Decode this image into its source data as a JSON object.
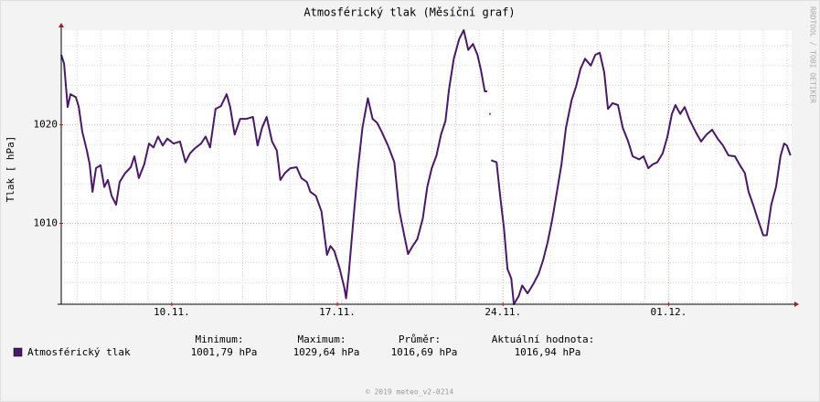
{
  "chart_data": {
    "type": "line",
    "title": "Atmosférický tlak (Měsíční graf)",
    "y_label": "Tlak [ hPa]",
    "side_text": "RRDTOOL / TOBI OETIKER",
    "footer": "© 2019 meteo_v2-0214",
    "xlim": [
      5.33,
      36.2
    ],
    "xticks": [
      {
        "value": 10,
        "label": "10.11."
      },
      {
        "value": 17,
        "label": "17.11."
      },
      {
        "value": 24,
        "label": "24.11."
      },
      {
        "value": 31,
        "label": "01.12."
      }
    ],
    "xminor": [
      6,
      7,
      8,
      9,
      11,
      12,
      13,
      14,
      15,
      16,
      18,
      19,
      20,
      21,
      22,
      23,
      25,
      26,
      27,
      28,
      29,
      30,
      32,
      33,
      34,
      35,
      36
    ],
    "ylim": [
      1001.8,
      1029.6
    ],
    "yticks": [
      1010,
      1020
    ],
    "yminor": [
      1002,
      1004,
      1006,
      1008,
      1012,
      1014,
      1016,
      1018,
      1022,
      1024,
      1026,
      1028
    ],
    "grid": true,
    "series": [
      {
        "name": "Atmosférický tlak",
        "color": "#4a1868",
        "x": [
          5.33,
          5.45,
          5.6,
          5.72,
          5.95,
          6.07,
          6.22,
          6.41,
          6.53,
          6.65,
          6.8,
          6.99,
          7.15,
          7.3,
          7.46,
          7.65,
          7.8,
          8.03,
          8.27,
          8.42,
          8.61,
          8.84,
          9.04,
          9.23,
          9.42,
          9.62,
          9.81,
          10.08,
          10.35,
          10.58,
          10.77,
          10.97,
          11.24,
          11.43,
          11.62,
          11.85,
          12.08,
          12.32,
          12.47,
          12.66,
          12.89,
          13.16,
          13.43,
          13.63,
          13.82,
          14.01,
          14.24,
          14.44,
          14.59,
          14.78,
          15.01,
          15.28,
          15.48,
          15.71,
          15.86,
          16.09,
          16.33,
          16.56,
          16.71,
          16.87,
          17.1,
          17.29,
          17.37,
          17.48,
          17.68,
          17.87,
          18.06,
          18.29,
          18.49,
          18.68,
          18.87,
          19.14,
          19.41,
          19.61,
          19.8,
          19.99,
          20.18,
          20.38,
          20.61,
          20.8,
          20.99,
          21.19,
          21.38,
          21.57,
          21.72,
          21.92,
          22.15,
          22.34,
          22.53,
          22.73,
          22.92,
          23.07,
          23.23,
          23.34,
          23.36,
          23.42,
          23.46,
          23.5,
          23.73,
          23.88,
          24.04,
          24.19,
          24.35,
          24.46,
          24.66,
          24.81,
          25.04,
          25.27,
          25.51,
          25.7,
          25.89,
          26.09,
          26.28,
          26.47,
          26.66,
          26.9,
          27.09,
          27.28,
          27.47,
          27.71,
          27.9,
          28.09,
          28.28,
          28.44,
          28.63,
          28.86,
          29.06,
          29.29,
          29.48,
          29.75,
          29.94,
          30.14,
          30.33,
          30.52,
          30.75,
          30.95,
          31.14,
          31.29,
          31.49,
          31.68,
          31.87,
          32.14,
          32.37,
          32.6,
          32.84,
          33.07,
          33.3,
          33.53,
          33.8,
          33.99,
          34.22,
          34.38,
          34.57,
          34.76,
          35.0,
          35.15,
          35.34,
          35.54,
          35.73,
          35.88,
          36.0,
          36.15
        ],
        "values": [
          1027.1,
          1026.2,
          1021.8,
          1023.1,
          1022.8,
          1021.8,
          1019.3,
          1017.4,
          1016.0,
          1013.2,
          1015.6,
          1015.9,
          1013.7,
          1014.4,
          1012.8,
          1011.9,
          1014.2,
          1015.1,
          1015.7,
          1016.8,
          1014.6,
          1016.0,
          1018.1,
          1017.7,
          1018.8,
          1017.9,
          1018.6,
          1018.1,
          1018.3,
          1016.2,
          1017.1,
          1017.6,
          1018.1,
          1018.8,
          1017.7,
          1021.6,
          1021.9,
          1023.1,
          1021.8,
          1019.0,
          1020.6,
          1020.6,
          1020.8,
          1017.9,
          1019.7,
          1020.8,
          1018.3,
          1017.4,
          1014.4,
          1015.1,
          1015.6,
          1015.7,
          1014.6,
          1014.2,
          1013.2,
          1012.8,
          1011.2,
          1006.8,
          1007.7,
          1007.2,
          1005.4,
          1003.5,
          1002.4,
          1004.9,
          1010.5,
          1015.6,
          1019.7,
          1022.7,
          1020.6,
          1020.2,
          1019.3,
          1017.9,
          1016.2,
          1011.4,
          1009.1,
          1006.9,
          1007.7,
          1008.4,
          1010.5,
          1013.7,
          1015.6,
          1016.9,
          1019.0,
          1020.4,
          1023.6,
          1026.7,
          1028.7,
          1029.6,
          1027.6,
          1028.2,
          1027.1,
          1025.5,
          1023.4,
          1023.4,
          null,
          1021.1,
          null,
          1016.4,
          1016.2,
          1012.8,
          1009.5,
          1005.4,
          1004.4,
          1001.8,
          1002.6,
          1003.7,
          1002.9,
          1003.8,
          1004.9,
          1006.3,
          1008.1,
          1010.5,
          1013.2,
          1016.0,
          1019.7,
          1022.5,
          1023.9,
          1025.7,
          1026.7,
          1026.0,
          1027.1,
          1027.3,
          1025.3,
          1021.6,
          1022.2,
          1022.0,
          1019.7,
          1018.3,
          1016.8,
          1016.5,
          1016.8,
          1015.6,
          1016.0,
          1016.2,
          1017.1,
          1018.8,
          1021.1,
          1022.0,
          1021.1,
          1021.8,
          1020.6,
          1019.3,
          1018.3,
          1019.0,
          1019.5,
          1018.6,
          1017.9,
          1016.9,
          1016.8,
          1016.0,
          1015.1,
          1013.2,
          1011.9,
          1010.5,
          1008.8,
          1008.8,
          1011.9,
          1013.7,
          1016.8,
          1018.1,
          1017.9,
          1016.9
        ]
      }
    ],
    "stats": [
      {
        "label": "Minimum:",
        "value": "1001,79 hPa"
      },
      {
        "label": "Maximum:",
        "value": "1029,64 hPa"
      },
      {
        "label": "Průměr:",
        "value": "1016,69 hPa"
      },
      {
        "label": "Aktuální hodnota:",
        "value": "1016,94 hPa"
      }
    ]
  }
}
